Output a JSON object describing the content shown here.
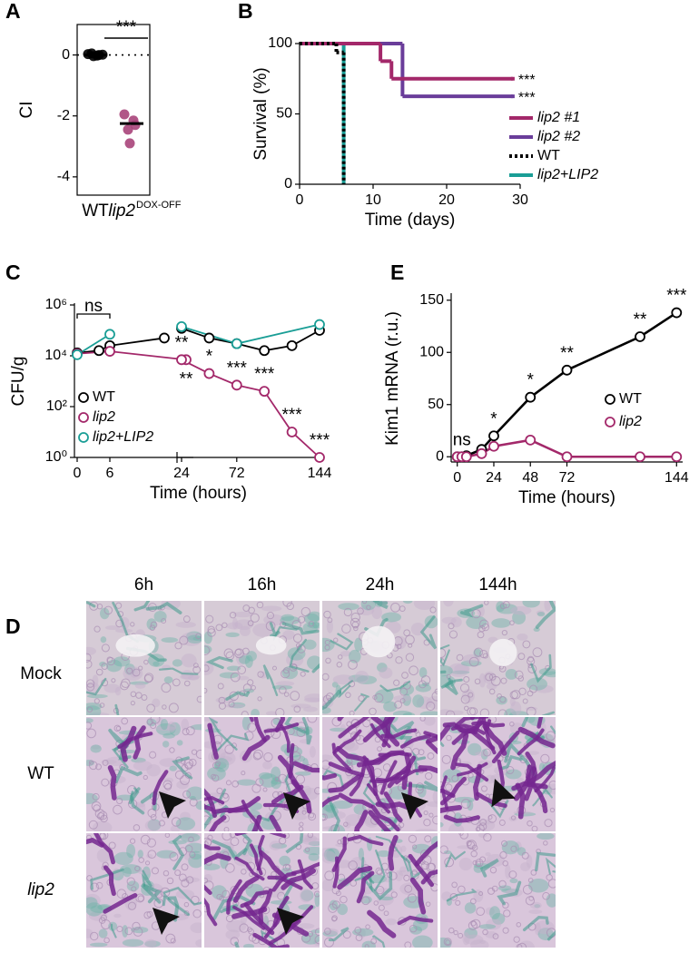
{
  "chart_data": [
    {
      "panel": "A",
      "type": "strip",
      "ylabel": "CI",
      "categories": [
        "WT",
        "lip2"
      ],
      "category_superscript": "DOX-OFF",
      "italic": [
        false,
        true
      ],
      "values": [
        [
          0.03,
          -0.02,
          0.0,
          0.05,
          -0.04,
          0.01
        ],
        [
          -1.95,
          -2.15,
          -2.3,
          -2.45,
          -2.9
        ]
      ],
      "medians": [
        0,
        -2.25
      ],
      "colors": [
        "#000000",
        "#a8447a"
      ],
      "ylim": [
        -4.6,
        1.0
      ],
      "yticks": [
        -4,
        -2,
        0
      ],
      "reference_line": 0,
      "significance": "***"
    },
    {
      "panel": "B",
      "type": "step",
      "xlabel": "Time (days)",
      "ylabel": "Survival (%)",
      "xlim": [
        0,
        30
      ],
      "ylim": [
        0,
        100
      ],
      "xticks": [
        0,
        10,
        20,
        30
      ],
      "yticks": [
        0,
        50,
        100
      ],
      "legend": "lower right",
      "series": [
        {
          "name": "lip2 #1",
          "italic": true,
          "color": "#a3286a",
          "x": [
            0,
            11,
            12.5,
            29
          ],
          "values": [
            100,
            87.5,
            75,
            75
          ],
          "significance": "***"
        },
        {
          "name": "lip2 #2",
          "italic": true,
          "color": "#6a3d9a",
          "x": [
            0,
            14,
            29
          ],
          "values": [
            100,
            62.5,
            62.5
          ],
          "significance": "***"
        },
        {
          "name": "WT",
          "italic": false,
          "color": "#000000",
          "dash": "dotted",
          "x": [
            0,
            5,
            6
          ],
          "values": [
            100,
            93.75,
            0
          ]
        },
        {
          "name": "lip2+LIP2",
          "italic": true,
          "color": "#1a9e96",
          "x": [
            0,
            6
          ],
          "values": [
            100,
            0
          ]
        }
      ]
    },
    {
      "panel": "C",
      "type": "line",
      "xlabel": "Time (hours)",
      "ylabel": "CFU/g",
      "log_scale": true,
      "ylim": [
        1,
        1000000
      ],
      "yticks": [
        {
          "value": 1,
          "label": "10⁰"
        },
        {
          "value": 100,
          "label": "10²"
        },
        {
          "value": 10000,
          "label": "10⁴"
        },
        {
          "value": 1000000,
          "label": "10⁶"
        }
      ],
      "xlim_segments": [
        [
          0,
          21
        ],
        [
          24,
          144
        ]
      ],
      "xticks": [
        0,
        6,
        24,
        72,
        144
      ],
      "legend": "lower left",
      "bracket": {
        "label": "ns",
        "x": [
          0,
          6
        ]
      },
      "series": [
        {
          "name": "WT",
          "italic": false,
          "color": "#000000",
          "x": [
            0,
            4,
            6,
            16,
            24,
            48,
            72,
            96,
            120,
            144
          ],
          "values": [
            13000,
            16000,
            25000,
            50000,
            120000,
            50000,
            30000,
            16000,
            25000,
            100000
          ]
        },
        {
          "name": "lip2",
          "italic": true,
          "color": "#a3286a",
          "x": [
            0,
            6,
            20,
            24,
            48,
            72,
            96,
            120,
            144
          ],
          "values": [
            12000,
            15000,
            7000,
            7000,
            2000,
            700,
            400,
            10,
            1
          ],
          "significance": [
            null,
            null,
            "**",
            "**",
            "*",
            "***",
            "***",
            "***",
            "***"
          ]
        },
        {
          "name": "lip2+LIP2",
          "italic": true,
          "color": "#1a9e96",
          "x": [
            0,
            6,
            24,
            72,
            144
          ],
          "values": [
            11000,
            70000,
            140000,
            30000,
            170000
          ]
        }
      ]
    },
    {
      "panel": "E",
      "type": "line",
      "xlabel": "Time (hours)",
      "ylabel": "Kim1 mRNA (r.u.)",
      "xlim": [
        -4,
        148
      ],
      "ylim": [
        -5,
        155
      ],
      "xticks": [
        0,
        24,
        48,
        72,
        144
      ],
      "yticks": [
        0,
        50,
        100,
        150
      ],
      "legend": "center right",
      "series": [
        {
          "name": "WT",
          "italic": false,
          "color": "#000000",
          "x": [
            0,
            3,
            6,
            16,
            24,
            48,
            72,
            120,
            144
          ],
          "values": [
            0,
            0,
            1,
            7,
            20,
            57,
            83,
            115,
            138
          ],
          "significance": [
            null,
            "ns",
            null,
            null,
            "*",
            "*",
            "**",
            "**",
            "***"
          ]
        },
        {
          "name": "lip2",
          "italic": true,
          "color": "#a3286a",
          "x": [
            0,
            3,
            6,
            16,
            24,
            48,
            72,
            120,
            144
          ],
          "values": [
            0,
            0,
            0,
            3,
            10,
            16,
            0,
            0,
            0
          ]
        }
      ]
    }
  ],
  "micrographs": {
    "panel": "D",
    "columns": [
      "6h",
      "16h",
      "24h",
      "144h"
    ],
    "rows": [
      "Mock",
      "WT",
      "lip2"
    ]
  }
}
